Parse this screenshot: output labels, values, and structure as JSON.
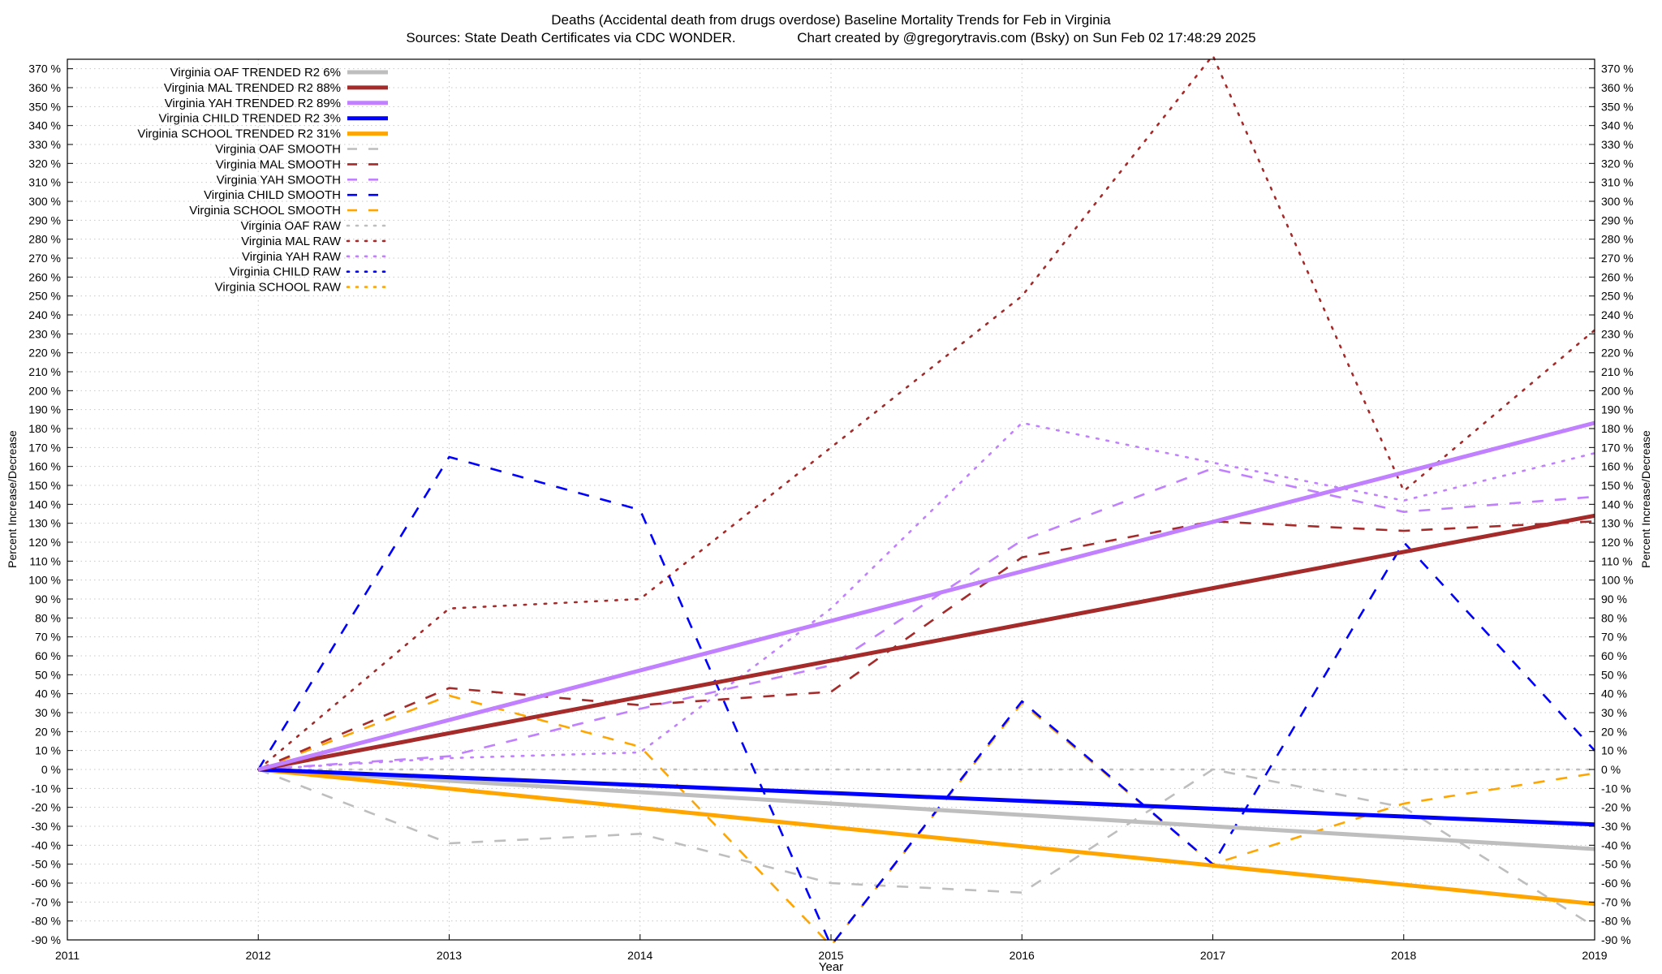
{
  "header": {
    "title": "Deaths (Accidental death from drugs overdose)  Baseline Mortality Trends for Feb in Virginia",
    "subtitle": "Sources: State Death Certificates via CDC WONDER.                Chart created by @gregorytravis.com (Bsky) on Sun Feb 02 17:48:29 2025"
  },
  "chart_data": {
    "type": "line",
    "xlabel": "Year",
    "ylabel": "Percent Increase/Decrease",
    "xlim": [
      2011,
      2019
    ],
    "ylim": [
      -90,
      375
    ],
    "x_ticks": [
      2011,
      2012,
      2013,
      2014,
      2015,
      2016,
      2017,
      2018,
      2019
    ],
    "y_ticks": [
      -90,
      -80,
      -70,
      -60,
      -50,
      -40,
      -30,
      -20,
      -10,
      0,
      10,
      20,
      30,
      40,
      50,
      60,
      70,
      80,
      90,
      100,
      110,
      120,
      130,
      140,
      150,
      160,
      170,
      180,
      190,
      200,
      210,
      220,
      230,
      240,
      250,
      260,
      270,
      280,
      290,
      300,
      310,
      320,
      330,
      340,
      350,
      360,
      370
    ],
    "y_tick_suffix": " %",
    "grid": true,
    "legend_position": "top-left",
    "series": [
      {
        "name": "Virginia OAF TRENDED R2  6%",
        "color": "#bebebe",
        "style": "solid",
        "x": [
          2012,
          2019
        ],
        "y": [
          0,
          -42
        ]
      },
      {
        "name": "Virginia MAL TRENDED R2  88%",
        "color": "#a52a2a",
        "style": "solid",
        "x": [
          2012,
          2019
        ],
        "y": [
          0,
          134
        ]
      },
      {
        "name": "Virginia YAH TRENDED R2  89%",
        "color": "#c080ff",
        "style": "solid",
        "x": [
          2012,
          2019
        ],
        "y": [
          0,
          183
        ]
      },
      {
        "name": "Virginia CHILD TRENDED R2  3%",
        "color": "#0000ff",
        "style": "solid",
        "x": [
          2012,
          2019
        ],
        "y": [
          0,
          -29
        ]
      },
      {
        "name": "Virginia SCHOOL TRENDED R2  31%",
        "color": "#ffa500",
        "style": "solid",
        "x": [
          2012,
          2019
        ],
        "y": [
          0,
          -71
        ]
      },
      {
        "name": "Virginia OAF SMOOTH",
        "color": "#bebebe",
        "style": "dashed",
        "x": [
          2012,
          2013,
          2014,
          2015,
          2016,
          2017,
          2018,
          2019
        ],
        "y": [
          0,
          -39,
          -34,
          -60,
          -65,
          0,
          -20,
          -83
        ]
      },
      {
        "name": "Virginia MAL SMOOTH",
        "color": "#a52a2a",
        "style": "dashed",
        "x": [
          2012,
          2013,
          2014,
          2015,
          2016,
          2017,
          2018,
          2019
        ],
        "y": [
          0,
          43,
          34,
          41,
          112,
          131,
          126,
          131
        ]
      },
      {
        "name": "Virginia YAH SMOOTH",
        "color": "#c080ff",
        "style": "dashed",
        "x": [
          2012,
          2013,
          2014,
          2015,
          2016,
          2017,
          2018,
          2019
        ],
        "y": [
          0,
          7,
          32,
          55,
          121,
          159,
          136,
          144
        ]
      },
      {
        "name": "Virginia CHILD SMOOTH",
        "color": "#0000ff",
        "style": "dashed",
        "x": [
          2012,
          2013,
          2014,
          2015,
          2016,
          2017,
          2018,
          2019
        ],
        "y": [
          0,
          165,
          137,
          -93,
          36,
          -50,
          120,
          10
        ]
      },
      {
        "name": "Virginia SCHOOL SMOOTH",
        "color": "#ffa500",
        "style": "dashed",
        "x": [
          2012,
          2013,
          2014,
          2015,
          2016,
          2017,
          2018,
          2019
        ],
        "y": [
          0,
          39,
          12,
          -93,
          35,
          -50,
          -18,
          -2
        ]
      },
      {
        "name": "Virginia OAF RAW",
        "color": "#bebebe",
        "style": "dotted",
        "x": [
          2012,
          2013,
          2014,
          2015,
          2016,
          2017,
          2018,
          2019
        ],
        "y": [
          0,
          0,
          0,
          0,
          0,
          0,
          0,
          0
        ]
      },
      {
        "name": "Virginia MAL RAW",
        "color": "#a52a2a",
        "style": "dotted",
        "x": [
          2012,
          2013,
          2014,
          2015,
          2016,
          2017,
          2018,
          2019
        ],
        "y": [
          0,
          85,
          90,
          170,
          250,
          377,
          147,
          232
        ]
      },
      {
        "name": "Virginia YAH RAW",
        "color": "#c080ff",
        "style": "dotted",
        "x": [
          2012,
          2013,
          2014,
          2015,
          2016,
          2017,
          2018,
          2019
        ],
        "y": [
          0,
          6,
          9,
          85,
          183,
          162,
          142,
          167
        ]
      },
      {
        "name": "Virginia CHILD RAW",
        "color": "#0000ff",
        "style": "dotted",
        "x": [],
        "y": []
      },
      {
        "name": "Virginia SCHOOL RAW",
        "color": "#ffa500",
        "style": "dotted",
        "x": [],
        "y": []
      }
    ]
  }
}
